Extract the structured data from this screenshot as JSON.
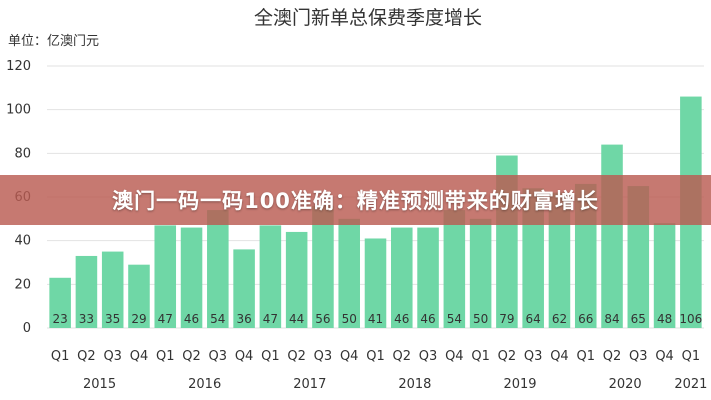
{
  "colors": {
    "bar": "#6fd7a6",
    "axis_text": "#333333",
    "grid": "#e2e2e2",
    "banner": "#ba5c52"
  },
  "banner": {
    "text": "澳门一码一码100准确：精准预测带来的财富增长"
  },
  "chart_data": {
    "type": "bar",
    "title": "全澳门新单总保费季度增长",
    "unit_label": "单位：亿澳门元",
    "ylim": [
      0,
      120
    ],
    "yticks": [
      0,
      20,
      40,
      60,
      80,
      100,
      120
    ],
    "grid": true,
    "categories": [
      "Q1",
      "Q2",
      "Q3",
      "Q4",
      "Q1",
      "Q2",
      "Q3",
      "Q4",
      "Q1",
      "Q2",
      "Q3",
      "Q4",
      "Q1",
      "Q2",
      "Q3",
      "Q4",
      "Q1",
      "Q2",
      "Q3",
      "Q4",
      "Q1",
      "Q2",
      "Q3",
      "Q4",
      "Q1"
    ],
    "years": [
      "2015",
      "2016",
      "2017",
      "2018",
      "2019",
      "2020",
      "2021"
    ],
    "values": [
      23,
      33,
      35,
      29,
      47,
      46,
      54,
      36,
      47,
      44,
      56,
      50,
      41,
      46,
      46,
      54,
      50,
      79,
      64,
      62,
      66,
      84,
      65,
      48,
      106
    ]
  }
}
